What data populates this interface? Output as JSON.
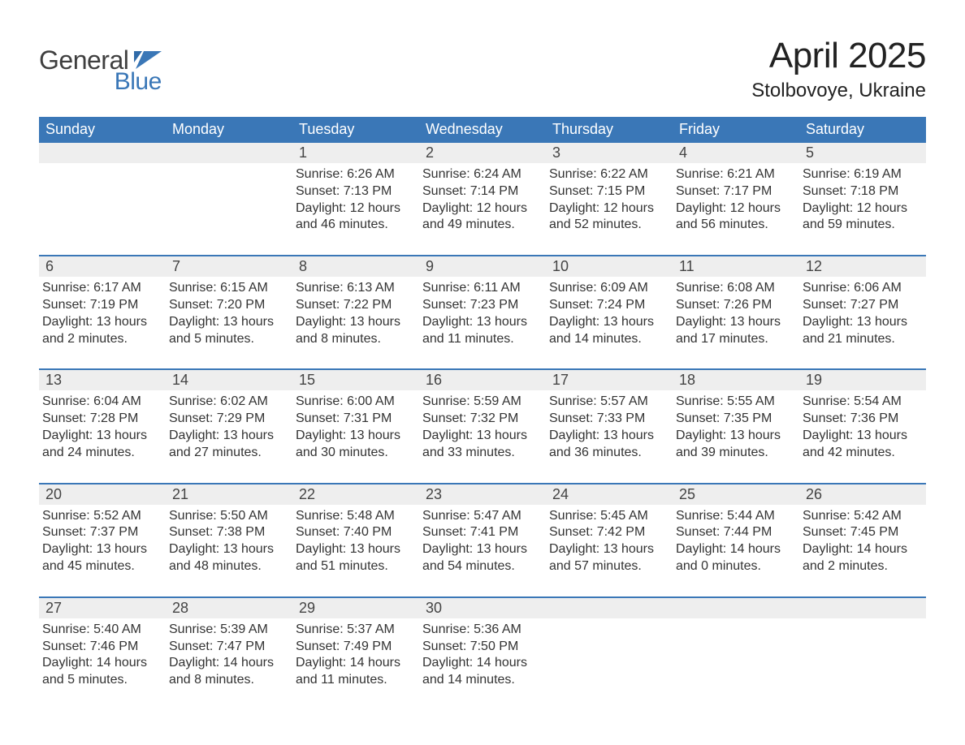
{
  "logo": {
    "general": "General",
    "blue": "Blue"
  },
  "title": "April 2025",
  "location": "Stolbovoye, Ukraine",
  "colors": {
    "header_bg": "#3a77b7",
    "header_text": "#ffffff",
    "daynum_bg": "#eeeeee",
    "week_border": "#3a77b7",
    "page_bg": "#ffffff",
    "text": "#333333",
    "logo_gray": "#3f3f3f",
    "logo_blue": "#3a77b7"
  },
  "dow": [
    "Sunday",
    "Monday",
    "Tuesday",
    "Wednesday",
    "Thursday",
    "Friday",
    "Saturday"
  ],
  "weeks": [
    [
      null,
      null,
      {
        "n": "1",
        "sunrise": "6:26 AM",
        "sunset": "7:13 PM",
        "dl1": "Daylight: 12 hours",
        "dl2": "and 46 minutes."
      },
      {
        "n": "2",
        "sunrise": "6:24 AM",
        "sunset": "7:14 PM",
        "dl1": "Daylight: 12 hours",
        "dl2": "and 49 minutes."
      },
      {
        "n": "3",
        "sunrise": "6:22 AM",
        "sunset": "7:15 PM",
        "dl1": "Daylight: 12 hours",
        "dl2": "and 52 minutes."
      },
      {
        "n": "4",
        "sunrise": "6:21 AM",
        "sunset": "7:17 PM",
        "dl1": "Daylight: 12 hours",
        "dl2": "and 56 minutes."
      },
      {
        "n": "5",
        "sunrise": "6:19 AM",
        "sunset": "7:18 PM",
        "dl1": "Daylight: 12 hours",
        "dl2": "and 59 minutes."
      }
    ],
    [
      {
        "n": "6",
        "sunrise": "6:17 AM",
        "sunset": "7:19 PM",
        "dl1": "Daylight: 13 hours",
        "dl2": "and 2 minutes."
      },
      {
        "n": "7",
        "sunrise": "6:15 AM",
        "sunset": "7:20 PM",
        "dl1": "Daylight: 13 hours",
        "dl2": "and 5 minutes."
      },
      {
        "n": "8",
        "sunrise": "6:13 AM",
        "sunset": "7:22 PM",
        "dl1": "Daylight: 13 hours",
        "dl2": "and 8 minutes."
      },
      {
        "n": "9",
        "sunrise": "6:11 AM",
        "sunset": "7:23 PM",
        "dl1": "Daylight: 13 hours",
        "dl2": "and 11 minutes."
      },
      {
        "n": "10",
        "sunrise": "6:09 AM",
        "sunset": "7:24 PM",
        "dl1": "Daylight: 13 hours",
        "dl2": "and 14 minutes."
      },
      {
        "n": "11",
        "sunrise": "6:08 AM",
        "sunset": "7:26 PM",
        "dl1": "Daylight: 13 hours",
        "dl2": "and 17 minutes."
      },
      {
        "n": "12",
        "sunrise": "6:06 AM",
        "sunset": "7:27 PM",
        "dl1": "Daylight: 13 hours",
        "dl2": "and 21 minutes."
      }
    ],
    [
      {
        "n": "13",
        "sunrise": "6:04 AM",
        "sunset": "7:28 PM",
        "dl1": "Daylight: 13 hours",
        "dl2": "and 24 minutes."
      },
      {
        "n": "14",
        "sunrise": "6:02 AM",
        "sunset": "7:29 PM",
        "dl1": "Daylight: 13 hours",
        "dl2": "and 27 minutes."
      },
      {
        "n": "15",
        "sunrise": "6:00 AM",
        "sunset": "7:31 PM",
        "dl1": "Daylight: 13 hours",
        "dl2": "and 30 minutes."
      },
      {
        "n": "16",
        "sunrise": "5:59 AM",
        "sunset": "7:32 PM",
        "dl1": "Daylight: 13 hours",
        "dl2": "and 33 minutes."
      },
      {
        "n": "17",
        "sunrise": "5:57 AM",
        "sunset": "7:33 PM",
        "dl1": "Daylight: 13 hours",
        "dl2": "and 36 minutes."
      },
      {
        "n": "18",
        "sunrise": "5:55 AM",
        "sunset": "7:35 PM",
        "dl1": "Daylight: 13 hours",
        "dl2": "and 39 minutes."
      },
      {
        "n": "19",
        "sunrise": "5:54 AM",
        "sunset": "7:36 PM",
        "dl1": "Daylight: 13 hours",
        "dl2": "and 42 minutes."
      }
    ],
    [
      {
        "n": "20",
        "sunrise": "5:52 AM",
        "sunset": "7:37 PM",
        "dl1": "Daylight: 13 hours",
        "dl2": "and 45 minutes."
      },
      {
        "n": "21",
        "sunrise": "5:50 AM",
        "sunset": "7:38 PM",
        "dl1": "Daylight: 13 hours",
        "dl2": "and 48 minutes."
      },
      {
        "n": "22",
        "sunrise": "5:48 AM",
        "sunset": "7:40 PM",
        "dl1": "Daylight: 13 hours",
        "dl2": "and 51 minutes."
      },
      {
        "n": "23",
        "sunrise": "5:47 AM",
        "sunset": "7:41 PM",
        "dl1": "Daylight: 13 hours",
        "dl2": "and 54 minutes."
      },
      {
        "n": "24",
        "sunrise": "5:45 AM",
        "sunset": "7:42 PM",
        "dl1": "Daylight: 13 hours",
        "dl2": "and 57 minutes."
      },
      {
        "n": "25",
        "sunrise": "5:44 AM",
        "sunset": "7:44 PM",
        "dl1": "Daylight: 14 hours",
        "dl2": "and 0 minutes."
      },
      {
        "n": "26",
        "sunrise": "5:42 AM",
        "sunset": "7:45 PM",
        "dl1": "Daylight: 14 hours",
        "dl2": "and 2 minutes."
      }
    ],
    [
      {
        "n": "27",
        "sunrise": "5:40 AM",
        "sunset": "7:46 PM",
        "dl1": "Daylight: 14 hours",
        "dl2": "and 5 minutes."
      },
      {
        "n": "28",
        "sunrise": "5:39 AM",
        "sunset": "7:47 PM",
        "dl1": "Daylight: 14 hours",
        "dl2": "and 8 minutes."
      },
      {
        "n": "29",
        "sunrise": "5:37 AM",
        "sunset": "7:49 PM",
        "dl1": "Daylight: 14 hours",
        "dl2": "and 11 minutes."
      },
      {
        "n": "30",
        "sunrise": "5:36 AM",
        "sunset": "7:50 PM",
        "dl1": "Daylight: 14 hours",
        "dl2": "and 14 minutes."
      },
      null,
      null,
      null
    ]
  ],
  "labels": {
    "sunrise": "Sunrise: ",
    "sunset": "Sunset: "
  }
}
